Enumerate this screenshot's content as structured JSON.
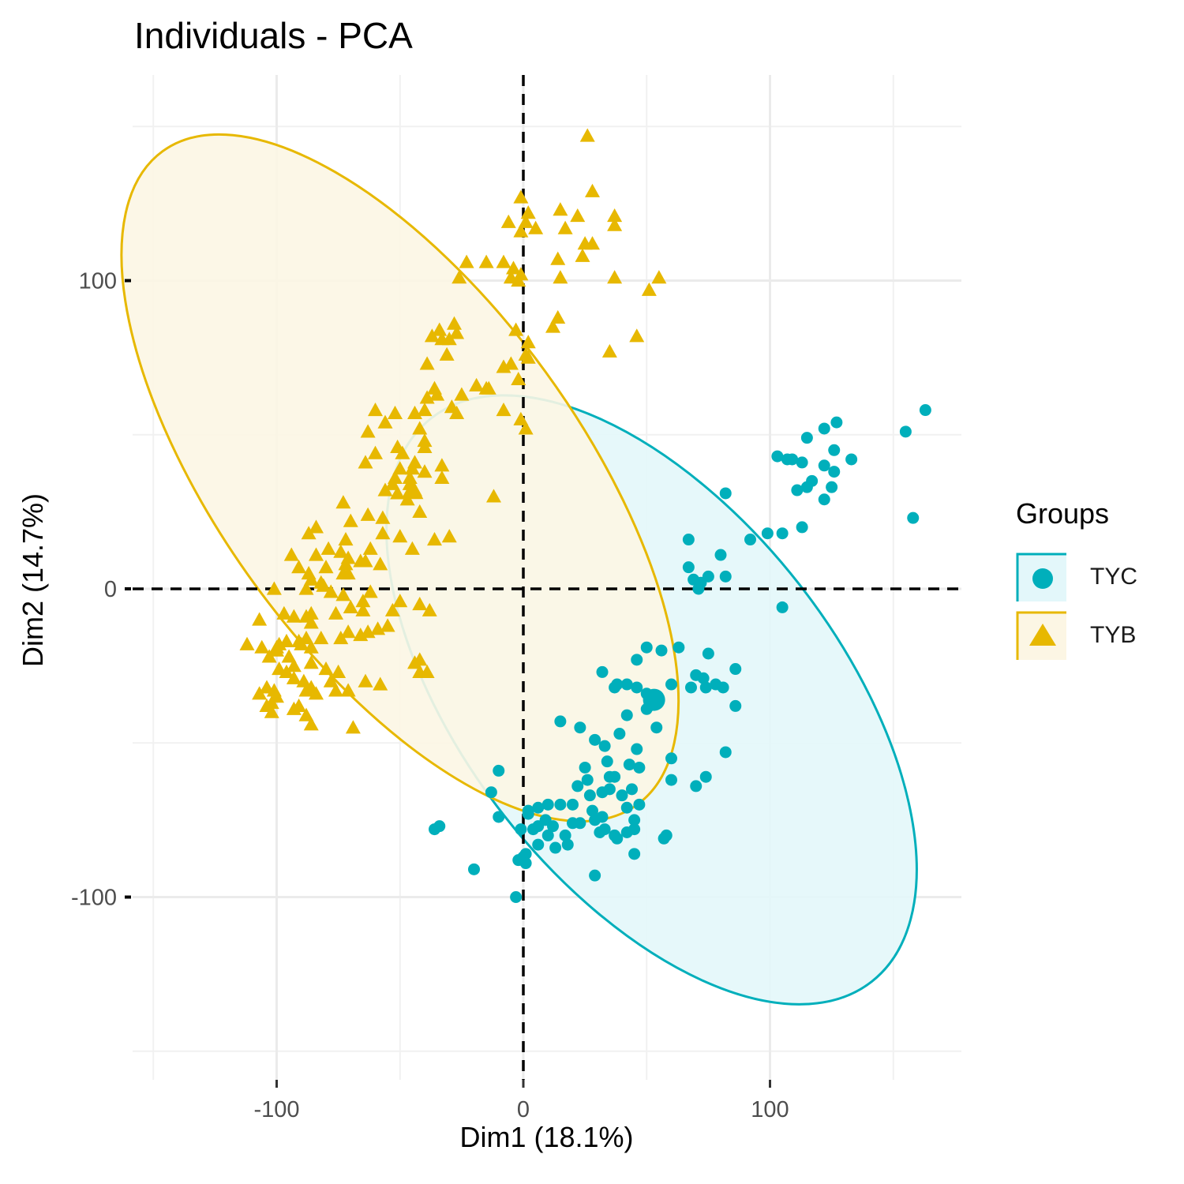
{
  "chart_data": {
    "type": "scatter",
    "title": "Individuals - PCA",
    "xlabel": "Dim1 (18.1%)",
    "ylabel": "Dim2 (14.7%)",
    "xlim": [
      -150,
      150
    ],
    "ylim": [
      -150,
      150
    ],
    "x_ticks": [
      -100,
      0,
      100
    ],
    "y_ticks": [
      -100,
      0,
      100
    ],
    "x_tick_labels": [
      "-100",
      "0",
      "100"
    ],
    "y_tick_labels": [
      "-100",
      "0",
      "100"
    ],
    "grid": true,
    "reference_lines": {
      "x": 0,
      "y": 0,
      "style": "dashed"
    },
    "legend": {
      "title": "Groups",
      "placement": "right"
    },
    "series": [
      {
        "name": "TYC",
        "shape": "circle",
        "color": "#00AFBB",
        "ellipse": {
          "center": [
            52,
            -36
          ],
          "semi_axis_x": 76,
          "semi_axis_y": 116,
          "rotation_deg": -38
        },
        "centroid": [
          53,
          -36
        ],
        "points": [
          [
            163,
            58
          ],
          [
            155,
            51
          ],
          [
            158,
            23
          ],
          [
            127,
            54
          ],
          [
            122,
            52
          ],
          [
            115,
            49
          ],
          [
            126,
            45
          ],
          [
            133,
            42
          ],
          [
            103,
            43
          ],
          [
            107,
            42
          ],
          [
            109,
            42
          ],
          [
            113,
            41
          ],
          [
            122,
            40
          ],
          [
            126,
            38
          ],
          [
            117,
            35
          ],
          [
            125,
            33
          ],
          [
            111,
            32
          ],
          [
            115,
            33
          ],
          [
            122,
            29
          ],
          [
            82,
            31
          ],
          [
            113,
            20
          ],
          [
            105,
            18
          ],
          [
            99,
            18
          ],
          [
            92,
            16
          ],
          [
            67,
            16
          ],
          [
            80,
            11
          ],
          [
            67,
            7
          ],
          [
            75,
            4
          ],
          [
            69,
            3
          ],
          [
            82,
            4
          ],
          [
            72,
            2
          ],
          [
            71,
            0
          ],
          [
            105,
            -6
          ],
          [
            50,
            -19
          ],
          [
            56,
            -20
          ],
          [
            63,
            -19
          ],
          [
            75,
            -21
          ],
          [
            46,
            -23
          ],
          [
            86,
            -26
          ],
          [
            32,
            -27
          ],
          [
            70,
            -28
          ],
          [
            73,
            -29
          ],
          [
            60,
            -31
          ],
          [
            78,
            -31
          ],
          [
            42,
            -31
          ],
          [
            46,
            -32
          ],
          [
            37,
            -32
          ],
          [
            38,
            -31
          ],
          [
            68,
            -32
          ],
          [
            74,
            -32
          ],
          [
            81,
            -32
          ],
          [
            50,
            -34
          ],
          [
            53,
            -36
          ],
          [
            52,
            -37
          ],
          [
            51,
            -38
          ],
          [
            50,
            -39
          ],
          [
            86,
            -38
          ],
          [
            42,
            -41
          ],
          [
            15,
            -43
          ],
          [
            54,
            -45
          ],
          [
            23,
            -45
          ],
          [
            39,
            -47
          ],
          [
            29,
            -49
          ],
          [
            33,
            -51
          ],
          [
            46,
            -52
          ],
          [
            82,
            -53
          ],
          [
            60,
            -55
          ],
          [
            34,
            -56
          ],
          [
            43,
            -57
          ],
          [
            25,
            -58
          ],
          [
            47,
            -58
          ],
          [
            35,
            -61
          ],
          [
            37,
            -61
          ],
          [
            60,
            -62
          ],
          [
            74,
            -61
          ],
          [
            26,
            -62
          ],
          [
            -10,
            -59
          ],
          [
            70,
            -64
          ],
          [
            22,
            -64
          ],
          [
            35,
            -65
          ],
          [
            44,
            -65
          ],
          [
            -13,
            -66
          ],
          [
            32,
            -66
          ],
          [
            27,
            -67
          ],
          [
            40,
            -67
          ],
          [
            47,
            -70
          ],
          [
            42,
            -71
          ],
          [
            15,
            -70
          ],
          [
            20,
            -70
          ],
          [
            10,
            -70
          ],
          [
            6,
            -71
          ],
          [
            28,
            -72
          ],
          [
            2,
            -72
          ],
          [
            2,
            -73
          ],
          [
            -10,
            -74
          ],
          [
            32,
            -74
          ],
          [
            29,
            -75
          ],
          [
            9,
            -75
          ],
          [
            45,
            -75
          ],
          [
            20,
            -76
          ],
          [
            23,
            -76
          ],
          [
            6,
            -77
          ],
          [
            12,
            -77
          ],
          [
            4,
            -78
          ],
          [
            -34,
            -77
          ],
          [
            -36,
            -78
          ],
          [
            -1,
            -78
          ],
          [
            33,
            -78
          ],
          [
            31,
            -79
          ],
          [
            42,
            -79
          ],
          [
            45,
            -78
          ],
          [
            17,
            -80
          ],
          [
            10,
            -80
          ],
          [
            37,
            -80
          ],
          [
            38,
            -81
          ],
          [
            58,
            -80
          ],
          [
            57,
            -81
          ],
          [
            6,
            -83
          ],
          [
            18,
            -83
          ],
          [
            13,
            -84
          ],
          [
            1,
            -86
          ],
          [
            45,
            -86
          ],
          [
            0,
            -87
          ],
          [
            -2,
            -88
          ],
          [
            1,
            -89
          ],
          [
            -20,
            -91
          ],
          [
            29,
            -93
          ],
          [
            -3,
            -100
          ]
        ]
      },
      {
        "name": "TYB",
        "shape": "triangle",
        "color": "#E7B800",
        "ellipse": {
          "center": [
            -50,
            36
          ],
          "semi_axis_x": 73,
          "semi_axis_y": 131,
          "rotation_deg": -36
        },
        "centroid": [
          -45,
          32
        ],
        "points": [
          [
            26,
            147
          ],
          [
            28,
            129
          ],
          [
            -1,
            127
          ],
          [
            2,
            122
          ],
          [
            15,
            123
          ],
          [
            22,
            121
          ],
          [
            37,
            121
          ],
          [
            -6,
            119
          ],
          [
            1,
            119
          ],
          [
            5,
            117
          ],
          [
            -1,
            116
          ],
          [
            25,
            112
          ],
          [
            28,
            112
          ],
          [
            17,
            117
          ],
          [
            37,
            118
          ],
          [
            24,
            108
          ],
          [
            14,
            107
          ],
          [
            -15,
            106
          ],
          [
            -23,
            106
          ],
          [
            -8,
            106
          ],
          [
            -4,
            104
          ],
          [
            -5,
            101
          ],
          [
            -1,
            102
          ],
          [
            15,
            101
          ],
          [
            37,
            101
          ],
          [
            55,
            101
          ],
          [
            51,
            97
          ],
          [
            -2,
            100
          ],
          [
            -26,
            101
          ],
          [
            14,
            88
          ],
          [
            12,
            85
          ],
          [
            -28,
            86
          ],
          [
            -27,
            83
          ],
          [
            -3,
            84
          ],
          [
            2,
            80
          ],
          [
            2,
            75
          ],
          [
            -33,
            81
          ],
          [
            -34,
            84
          ],
          [
            -30,
            81
          ],
          [
            -37,
            82
          ],
          [
            -2,
            68
          ],
          [
            1,
            76
          ],
          [
            -5,
            73
          ],
          [
            -8,
            72
          ],
          [
            -31,
            76
          ],
          [
            -39,
            73
          ],
          [
            46,
            82
          ],
          [
            35,
            77
          ],
          [
            -19,
            66
          ],
          [
            -15,
            65
          ],
          [
            -14,
            65
          ],
          [
            -36,
            65
          ],
          [
            -35,
            63
          ],
          [
            -25,
            63
          ],
          [
            -39,
            62
          ],
          [
            -8,
            58
          ],
          [
            -27,
            57
          ],
          [
            -29,
            59
          ],
          [
            -40,
            58
          ],
          [
            -44,
            57
          ],
          [
            -52,
            57
          ],
          [
            -60,
            58
          ],
          [
            -42,
            52
          ],
          [
            -1,
            55
          ],
          [
            1,
            52
          ],
          [
            -56,
            54
          ],
          [
            -63,
            51
          ],
          [
            -60,
            44
          ],
          [
            -40,
            46
          ],
          [
            -40,
            48
          ],
          [
            -51,
            46
          ],
          [
            -49,
            44
          ],
          [
            -64,
            41
          ],
          [
            -50,
            39
          ],
          [
            -44,
            41
          ],
          [
            -45,
            39
          ],
          [
            -33,
            40
          ],
          [
            -52,
            36
          ],
          [
            -46,
            36
          ],
          [
            -40,
            38
          ],
          [
            -53,
            34
          ],
          [
            -33,
            36
          ],
          [
            -51,
            31
          ],
          [
            -44,
            32
          ],
          [
            -47,
            29
          ],
          [
            -56,
            32
          ],
          [
            -46,
            34
          ],
          [
            -12,
            30
          ],
          [
            -73,
            28
          ],
          [
            -42,
            25
          ],
          [
            -63,
            24
          ],
          [
            -70,
            22
          ],
          [
            -57,
            23
          ],
          [
            -84,
            20
          ],
          [
            -87,
            18
          ],
          [
            -50,
            17
          ],
          [
            -57,
            18
          ],
          [
            -30,
            17
          ],
          [
            -36,
            16
          ],
          [
            -72,
            16
          ],
          [
            -45,
            13
          ],
          [
            -62,
            13
          ],
          [
            -79,
            13
          ],
          [
            -74,
            12
          ],
          [
            -84,
            11
          ],
          [
            -94,
            11
          ],
          [
            -64,
            9
          ],
          [
            -71,
            10
          ],
          [
            -72,
            8
          ],
          [
            -66,
            9
          ],
          [
            -58,
            8
          ],
          [
            -80,
            7
          ],
          [
            -91,
            7
          ],
          [
            -73,
            5
          ],
          [
            -71,
            5
          ],
          [
            -87,
            5
          ],
          [
            -86,
            3
          ],
          [
            -82,
            2
          ],
          [
            -81,
            1
          ],
          [
            -101,
            0
          ],
          [
            -88,
            0
          ],
          [
            -78,
            -1
          ],
          [
            -73,
            -2
          ],
          [
            -62,
            -1
          ],
          [
            -50,
            -4
          ],
          [
            -42,
            -5
          ],
          [
            -38,
            -7
          ],
          [
            -53,
            -7
          ],
          [
            -70,
            -6
          ],
          [
            -65,
            -4
          ],
          [
            -65,
            -7
          ],
          [
            -76,
            -8
          ],
          [
            -86,
            -8
          ],
          [
            -93,
            -9
          ],
          [
            -97,
            -8
          ],
          [
            -88,
            -9
          ],
          [
            -107,
            -10
          ],
          [
            -86,
            -11
          ],
          [
            -55,
            -12
          ],
          [
            -71,
            -14
          ],
          [
            -63,
            -14
          ],
          [
            -66,
            -15
          ],
          [
            -74,
            -16
          ],
          [
            -82,
            -16
          ],
          [
            -59,
            -13
          ],
          [
            -88,
            -16
          ],
          [
            -91,
            -17
          ],
          [
            -96,
            -17
          ],
          [
            -90,
            -18
          ],
          [
            -99,
            -18
          ],
          [
            -86,
            -19
          ],
          [
            -100,
            -19
          ],
          [
            -112,
            -18
          ],
          [
            -106,
            -19
          ],
          [
            -100,
            -20
          ],
          [
            -103,
            -22
          ],
          [
            -95,
            -22
          ],
          [
            -86,
            -24
          ],
          [
            -42,
            -23
          ],
          [
            -44,
            -24
          ],
          [
            -93,
            -25
          ],
          [
            -99,
            -26
          ],
          [
            -80,
            -26
          ],
          [
            -96,
            -27
          ],
          [
            -42,
            -27
          ],
          [
            -75,
            -27
          ],
          [
            -39,
            -27
          ],
          [
            -93,
            -29
          ],
          [
            -89,
            -30
          ],
          [
            -64,
            -30
          ],
          [
            -78,
            -30
          ],
          [
            -86,
            -32
          ],
          [
            -58,
            -31
          ],
          [
            -104,
            -32
          ],
          [
            -101,
            -33
          ],
          [
            -88,
            -33
          ],
          [
            -76,
            -33
          ],
          [
            -71,
            -33
          ],
          [
            -84,
            -34
          ],
          [
            -107,
            -34
          ],
          [
            -100,
            -35
          ],
          [
            -102,
            -37
          ],
          [
            -91,
            -38
          ],
          [
            -104,
            -38
          ],
          [
            -93,
            -39
          ],
          [
            -88,
            -41
          ],
          [
            -102,
            -40
          ],
          [
            -86,
            -44
          ],
          [
            -69,
            -45
          ]
        ]
      }
    ]
  }
}
